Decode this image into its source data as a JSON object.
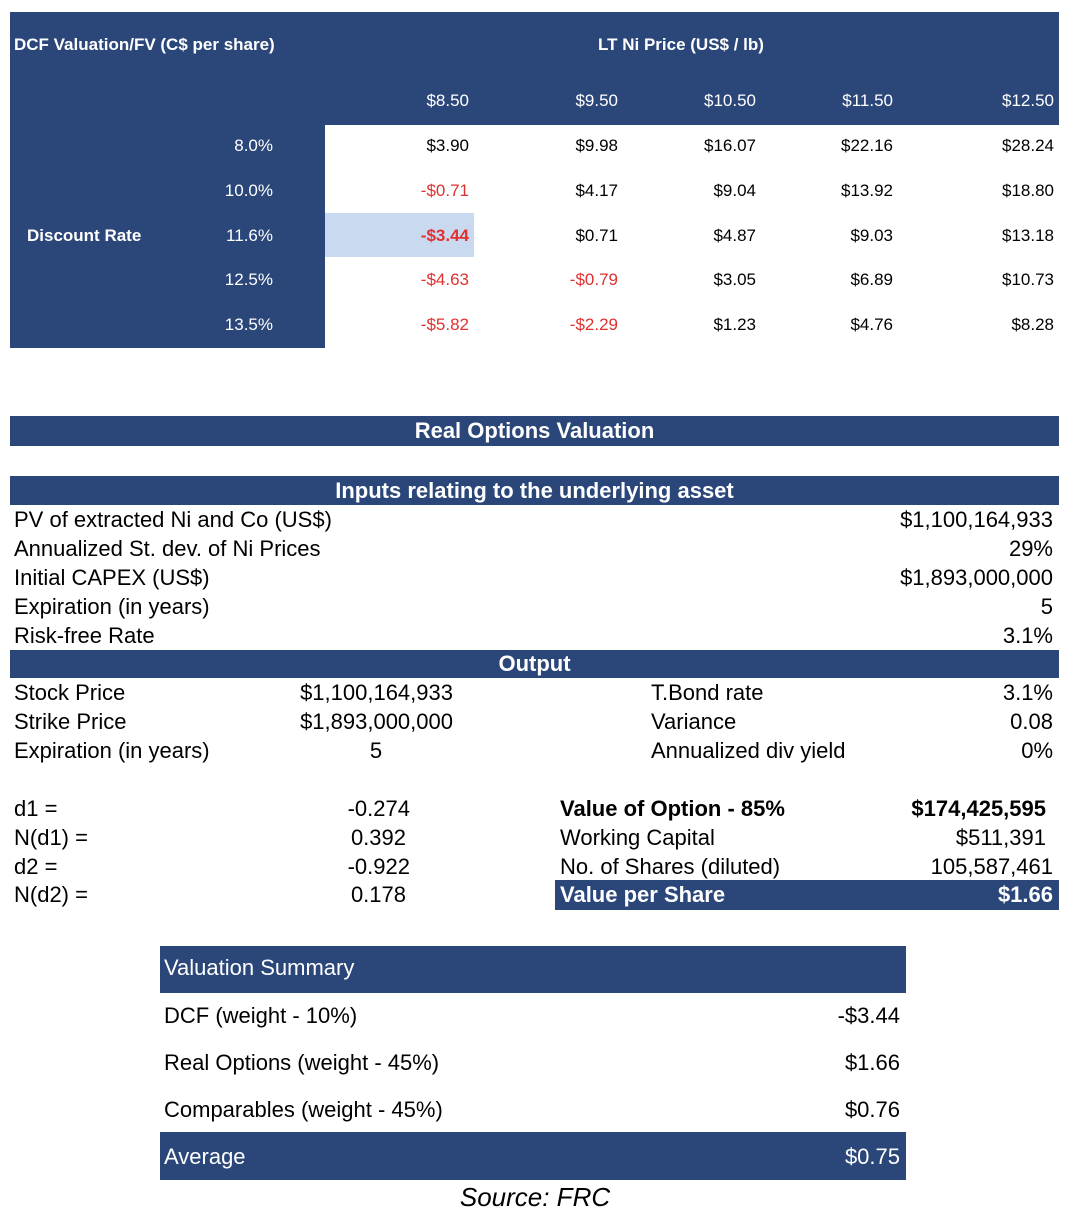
{
  "dcf": {
    "title": "DCF Valuation/FV (C$ per share)",
    "price_header": "LT Ni Price (US$ / lb)",
    "discount_label": "Discount Rate",
    "prices": [
      "$8.50",
      "$9.50",
      "$10.50",
      "$11.50",
      "$12.50"
    ],
    "rows": [
      {
        "rate": "8.0%",
        "values": [
          "$3.90",
          "$9.98",
          "$16.07",
          "$22.16",
          "$28.24"
        ]
      },
      {
        "rate": "10.0%",
        "values": [
          "-$0.71",
          "$4.17",
          "$9.04",
          "$13.92",
          "$18.80"
        ]
      },
      {
        "rate": "11.6%",
        "values": [
          "-$3.44",
          "$0.71",
          "$4.87",
          "$9.03",
          "$13.18"
        ]
      },
      {
        "rate": "12.5%",
        "values": [
          "-$4.63",
          "-$0.79",
          "$3.05",
          "$6.89",
          "$10.73"
        ]
      },
      {
        "rate": "13.5%",
        "values": [
          "-$5.82",
          "-$2.29",
          "$1.23",
          "$4.76",
          "$8.28"
        ]
      }
    ],
    "highlight_color": "#c9d9f0",
    "navy": "#2b4779",
    "negative_color": "#e03030"
  },
  "real_options": {
    "title": "Real Options Valuation",
    "inputs_title": "Inputs relating to the underlying asset",
    "inputs": [
      {
        "label": "PV of extracted Ni and Co (US$)",
        "value": "$1,100,164,933"
      },
      {
        "label": "Annualized St. dev. of Ni Prices",
        "value": "29%"
      },
      {
        "label": "Initial CAPEX (US$)",
        "value": "$1,893,000,000"
      },
      {
        "label": "Expiration (in years)",
        "value": "5"
      },
      {
        "label": "Risk-free Rate",
        "value": "3.1%"
      }
    ],
    "output_title": "Output",
    "output_left": [
      {
        "label": "Stock Price",
        "value": "$1,100,164,933"
      },
      {
        "label": "Strike Price",
        "value": "$1,893,000,000"
      },
      {
        "label": "Expiration (in years)",
        "value": "5"
      }
    ],
    "output_right": [
      {
        "label": "T.Bond rate",
        "value": "3.1%"
      },
      {
        "label": "Variance",
        "value": "0.08"
      },
      {
        "label": "Annualized div yield",
        "value": "0%"
      }
    ],
    "d_values": [
      {
        "label": "d1 =",
        "value": "-0.274"
      },
      {
        "label": "N(d1) =",
        "value": "0.392"
      },
      {
        "label": "d2 =",
        "value": "-0.922"
      },
      {
        "label": "N(d2) =",
        "value": "0.178"
      }
    ],
    "option_value": {
      "label": "Value of Option - 85%",
      "value": "$174,425,595"
    },
    "working_capital": {
      "label": "Working Capital",
      "value": "$511,391"
    },
    "shares": {
      "label": "No. of Shares (diluted)",
      "value": "105,587,461"
    },
    "per_share": {
      "label": "Value per Share",
      "value": "$1.66"
    }
  },
  "summary": {
    "title": "Valuation Summary",
    "rows": [
      {
        "label": "DCF  (weight - 10%)",
        "value": "-$3.44"
      },
      {
        "label": "Real Options (weight - 45%)",
        "value": "$1.66"
      },
      {
        "label": "Comparables (weight - 45%)",
        "value": "$0.76"
      }
    ],
    "average": {
      "label": "Average",
      "value": "$0.75"
    }
  },
  "source": "Source: FRC"
}
